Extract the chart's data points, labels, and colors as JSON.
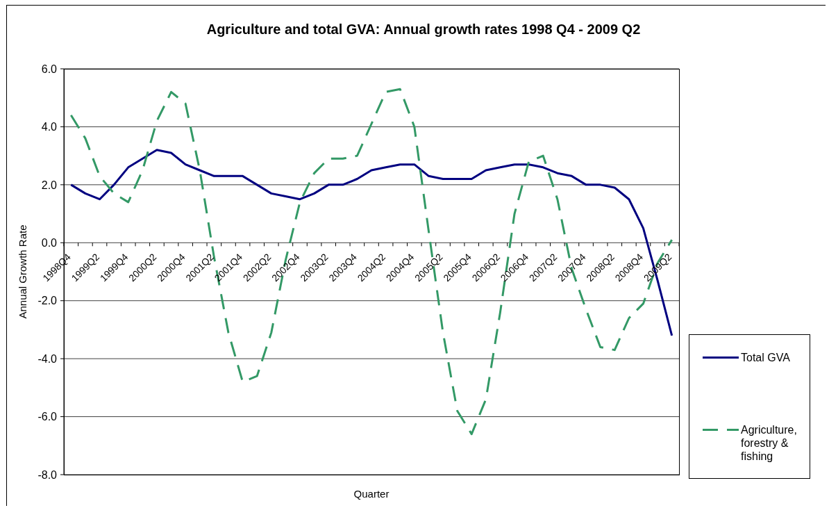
{
  "chart_data": {
    "type": "line",
    "title": "Agriculture and total GVA: Annual growth rates 1998 Q4 - 2009 Q2",
    "xlabel": "Quarter",
    "ylabel": "Annual Growth Rate",
    "categories": [
      "1998Q4",
      null,
      "1999Q2",
      null,
      "1999Q4",
      null,
      "2000Q2",
      null,
      "2000Q4",
      null,
      "2001Q2",
      null,
      "2001Q4",
      null,
      "2002Q2",
      null,
      "2002Q4",
      null,
      "2003Q2",
      null,
      "2003Q4",
      null,
      "2004Q2",
      null,
      "2004Q4",
      null,
      "2005Q2",
      null,
      "2005Q4",
      null,
      "2006Q2",
      null,
      "2006Q4",
      null,
      "2007Q2",
      null,
      "2007Q4",
      null,
      "2008Q2",
      null,
      "2008Q4",
      null,
      "2009Q2"
    ],
    "series": [
      {
        "name": "Total GVA",
        "color": "#000080",
        "line_style": "solid",
        "values": [
          2.0,
          1.7,
          1.5,
          2.0,
          2.6,
          2.9,
          3.2,
          3.1,
          2.7,
          2.5,
          2.3,
          2.3,
          2.3,
          2.0,
          1.7,
          1.6,
          1.5,
          1.7,
          2.0,
          2.0,
          2.2,
          2.5,
          2.6,
          2.7,
          2.7,
          2.3,
          2.2,
          2.2,
          2.2,
          2.5,
          2.6,
          2.7,
          2.7,
          2.6,
          2.4,
          2.3,
          2.0,
          2.0,
          1.9,
          1.5,
          0.5,
          -1.3,
          -3.2
        ]
      },
      {
        "name": "Agriculture, forestry & fishing",
        "color": "#339966",
        "line_style": "dashed",
        "values": [
          4.4,
          3.6,
          2.3,
          1.7,
          1.4,
          2.5,
          4.2,
          5.2,
          4.8,
          2.5,
          -0.5,
          -3.1,
          -4.8,
          -4.6,
          -3.1,
          -0.6,
          1.4,
          2.4,
          2.9,
          2.9,
          3.0,
          4.1,
          5.2,
          5.3,
          4.0,
          0.4,
          -3.1,
          -5.8,
          -6.6,
          -5.4,
          -2.4,
          1.0,
          2.8,
          3.0,
          1.5,
          -0.9,
          -2.3,
          -3.6,
          -3.7,
          -2.6,
          -2.1,
          -0.7,
          0.1
        ]
      }
    ],
    "ylim": [
      -8,
      6
    ],
    "yticks": [
      {
        "value": -8,
        "label": "-8.0"
      },
      {
        "value": -6,
        "label": "-6.0"
      },
      {
        "value": -4,
        "label": "-4.0"
      },
      {
        "value": -2,
        "label": "-2.0"
      },
      {
        "value": 0,
        "label": "0.0"
      },
      {
        "value": 2,
        "label": "2.0"
      },
      {
        "value": 4,
        "label": "4.0"
      },
      {
        "value": 6,
        "label": "6.0"
      }
    ],
    "grid": "y",
    "legend": "bottom right"
  }
}
